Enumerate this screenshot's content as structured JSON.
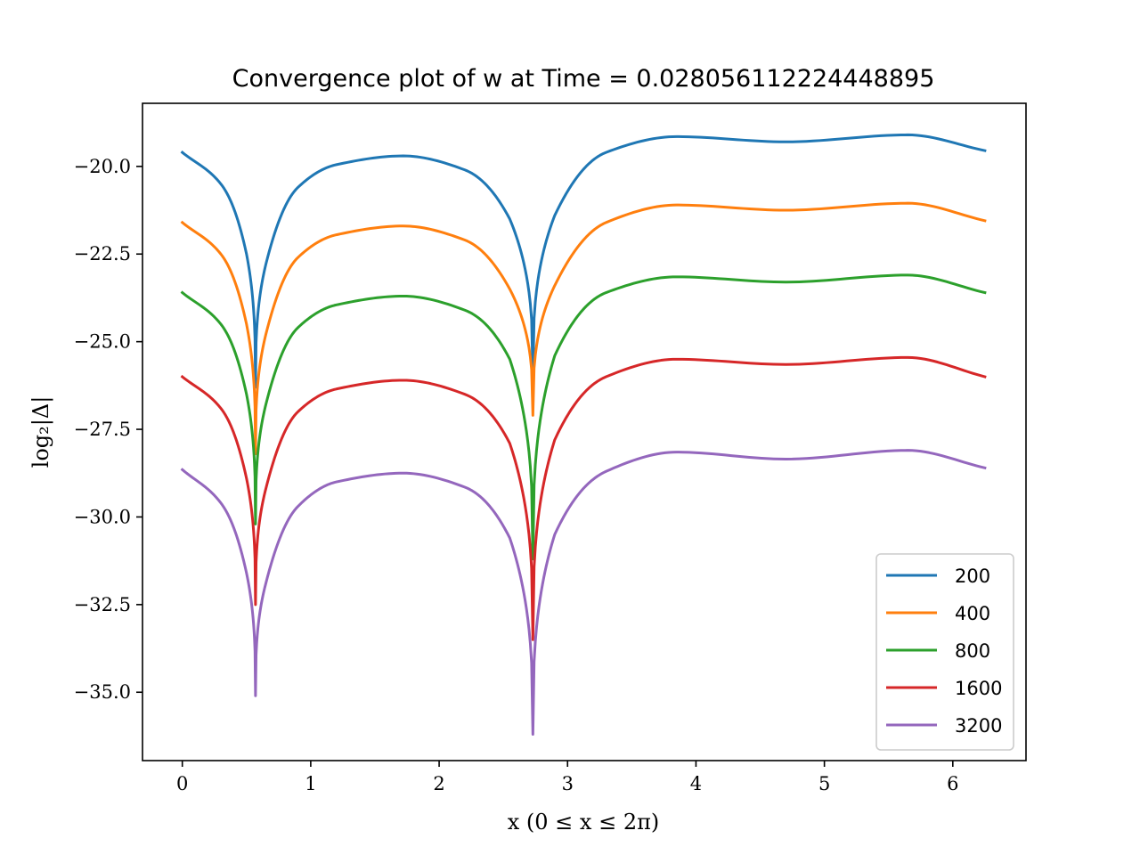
{
  "chart_data": {
    "type": "line",
    "title": "Convergence plot of w at Time = 0.028056112224448895",
    "xlabel": "x (0 ≤ x ≤ 2π)",
    "ylabel": "log₂|Δ|",
    "xlim": [
      -0.31,
      6.57
    ],
    "ylim": [
      -36.95,
      -18.2
    ],
    "xticks": [
      0,
      1,
      2,
      3,
      4,
      5,
      6
    ],
    "xtick_labels": [
      "0",
      "1",
      "2",
      "3",
      "4",
      "5",
      "6"
    ],
    "yticks": [
      -20.0,
      -22.5,
      -25.0,
      -27.5,
      -30.0,
      -32.5,
      -35.0
    ],
    "ytick_labels": [
      "−20.0",
      "−22.5",
      "−25.0",
      "−27.5",
      "−30.0",
      "−32.5",
      "−35.0"
    ],
    "grid": false,
    "legend_position": "lower-right",
    "x_domain": [
      0,
      6.2518
    ],
    "dip_locations": [
      0.57,
      2.73
    ],
    "series": [
      {
        "name": "200",
        "color": "#1f77b4",
        "points": [
          [
            0,
            -19.6
          ],
          [
            0.3,
            -20.5
          ],
          [
            0.5,
            -22.5
          ],
          [
            0.57,
            -26.3
          ],
          [
            0.65,
            -22.8
          ],
          [
            0.9,
            -20.6
          ],
          [
            1.2,
            -19.95
          ],
          [
            1.72,
            -19.7
          ],
          [
            2.2,
            -20.1
          ],
          [
            2.55,
            -21.5
          ],
          [
            2.73,
            -26.0
          ],
          [
            2.9,
            -21.4
          ],
          [
            3.3,
            -19.6
          ],
          [
            3.85,
            -19.15
          ],
          [
            4.7,
            -19.3
          ],
          [
            5.65,
            -19.1
          ],
          [
            6.25,
            -19.55
          ]
        ]
      },
      {
        "name": "400",
        "color": "#ff7f0e",
        "points": [
          [
            0,
            -21.6
          ],
          [
            0.3,
            -22.5
          ],
          [
            0.5,
            -24.5
          ],
          [
            0.57,
            -28.2
          ],
          [
            0.65,
            -24.8
          ],
          [
            0.9,
            -22.6
          ],
          [
            1.2,
            -21.95
          ],
          [
            1.72,
            -21.7
          ],
          [
            2.2,
            -22.1
          ],
          [
            2.55,
            -23.5
          ],
          [
            2.73,
            -27.1
          ],
          [
            2.9,
            -23.4
          ],
          [
            3.3,
            -21.6
          ],
          [
            3.85,
            -21.1
          ],
          [
            4.7,
            -21.25
          ],
          [
            5.65,
            -21.05
          ],
          [
            6.25,
            -21.55
          ]
        ]
      },
      {
        "name": "800",
        "color": "#2ca02c",
        "points": [
          [
            0,
            -23.6
          ],
          [
            0.3,
            -24.5
          ],
          [
            0.5,
            -26.5
          ],
          [
            0.57,
            -30.2
          ],
          [
            0.65,
            -26.8
          ],
          [
            0.9,
            -24.6
          ],
          [
            1.2,
            -23.95
          ],
          [
            1.72,
            -23.7
          ],
          [
            2.2,
            -24.1
          ],
          [
            2.55,
            -25.5
          ],
          [
            2.73,
            -31.2
          ],
          [
            2.9,
            -25.4
          ],
          [
            3.3,
            -23.6
          ],
          [
            3.85,
            -23.15
          ],
          [
            4.7,
            -23.3
          ],
          [
            5.65,
            -23.1
          ],
          [
            6.25,
            -23.6
          ]
        ]
      },
      {
        "name": "1600",
        "color": "#d62728",
        "points": [
          [
            0,
            -26.0
          ],
          [
            0.3,
            -26.9
          ],
          [
            0.5,
            -28.9
          ],
          [
            0.57,
            -32.5
          ],
          [
            0.65,
            -29.2
          ],
          [
            0.9,
            -27.0
          ],
          [
            1.2,
            -26.35
          ],
          [
            1.72,
            -26.1
          ],
          [
            2.2,
            -26.5
          ],
          [
            2.55,
            -27.9
          ],
          [
            2.73,
            -33.5
          ],
          [
            2.9,
            -27.8
          ],
          [
            3.3,
            -26.0
          ],
          [
            3.85,
            -25.5
          ],
          [
            4.7,
            -25.65
          ],
          [
            5.65,
            -25.45
          ],
          [
            6.25,
            -26.0
          ]
        ]
      },
      {
        "name": "3200",
        "color": "#9467bd",
        "points": [
          [
            0,
            -28.65
          ],
          [
            0.3,
            -29.6
          ],
          [
            0.5,
            -31.6
          ],
          [
            0.57,
            -35.1
          ],
          [
            0.65,
            -31.9
          ],
          [
            0.9,
            -29.7
          ],
          [
            1.2,
            -29.0
          ],
          [
            1.72,
            -28.75
          ],
          [
            2.2,
            -29.15
          ],
          [
            2.55,
            -30.6
          ],
          [
            2.73,
            -36.2
          ],
          [
            2.9,
            -30.5
          ],
          [
            3.3,
            -28.7
          ],
          [
            3.85,
            -28.15
          ],
          [
            4.7,
            -28.35
          ],
          [
            5.65,
            -28.1
          ],
          [
            6.25,
            -28.6
          ]
        ]
      }
    ]
  }
}
